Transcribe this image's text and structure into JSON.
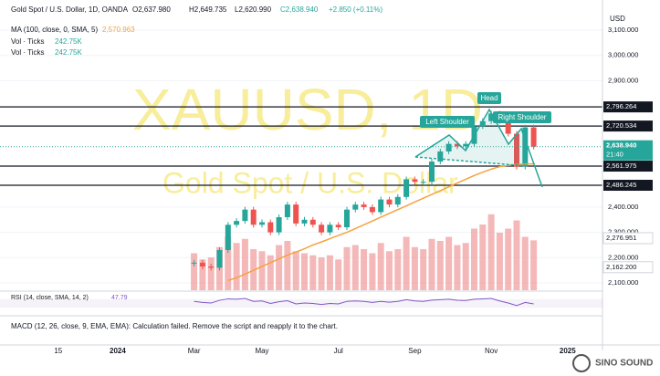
{
  "header": {
    "symbol": "Gold Spot / U.S. Dollar, 1D, OANDA",
    "ohlc": [
      "O2,637.980",
      "H2,649.735",
      "L2,620.990",
      "C2,638.940",
      "+2.850 (+0.11%)"
    ],
    "ma_label": "MA (100, close, 0, SMA, 5)",
    "ma_value": "2,570.963",
    "vol_label": "Vol · Ticks",
    "vol_value": "242.75K",
    "currency": "USD"
  },
  "watermark": {
    "symbol": "XAUUSD, 1D",
    "name": "Gold Spot / U.S. Dollar"
  },
  "pattern": {
    "head": "Head",
    "left": "Left Shoulder",
    "right": "Right Shoulder"
  },
  "rsi_label": "RSI (14, close, SMA, 14, 2)",
  "rsi_value": "47.79",
  "macd_label": "MACD (12, 26, close, 9, EMA, EMA): Calculation failed. Remove the script and reapply it to the chart.",
  "logo": "SINO SOUND",
  "chart_data": {
    "type": "candlestick",
    "categories": [
      null,
      null,
      null,
      null,
      null,
      null,
      "15",
      null,
      null,
      null,
      null,
      null,
      null,
      "2024",
      null,
      null,
      null,
      null,
      null,
      null,
      null,
      null,
      "Mar",
      null,
      null,
      null,
      null,
      null,
      null,
      null,
      "May",
      null,
      null,
      null,
      null,
      null,
      null,
      null,
      null,
      "Jul",
      null,
      null,
      null,
      null,
      null,
      null,
      null,
      null,
      "Sep",
      null,
      null,
      null,
      null,
      null,
      null,
      null,
      null,
      "Nov",
      null,
      null,
      null,
      null,
      null,
      null,
      null,
      null,
      "2025",
      null,
      null,
      null
    ],
    "ylim": [
      2100,
      3100
    ],
    "yticks": [
      {
        "value": 3100,
        "label": "3,100.000"
      },
      {
        "value": 3000,
        "label": "3,000.000"
      },
      {
        "value": 2900,
        "label": "2,900.000"
      },
      {
        "value": 2400,
        "label": "2,400.000"
      },
      {
        "value": 2300,
        "label": "2,300.000"
      },
      {
        "value": 2200,
        "label": "2,200.000"
      },
      {
        "value": 2100,
        "label": "2,100.000"
      }
    ],
    "grid": true,
    "series": [
      {
        "name": "XAUUSD",
        "color_up": "#26a69a",
        "color_down": "#ef5350",
        "values": [
          null,
          null,
          null,
          null,
          null,
          null,
          null,
          null,
          null,
          null,
          null,
          null,
          null,
          null,
          null,
          null,
          null,
          null,
          null,
          null,
          null,
          null,
          2180,
          2165,
          2160,
          2230,
          2330,
          2345,
          2390,
          2330,
          2340,
          2300,
          2360,
          2410,
          2335,
          2350,
          2330,
          2300,
          2330,
          2320,
          2390,
          2410,
          2400,
          2380,
          2430,
          2410,
          2440,
          2510,
          2500,
          2500,
          2580,
          2620,
          2650,
          2640,
          2650,
          2720,
          2740,
          2770,
          2740,
          2690,
          2560,
          2715,
          2638.94,
          null,
          null,
          null,
          null,
          null,
          null,
          null
        ]
      },
      {
        "name": "MA",
        "color": "#f5a340",
        "values": [
          null,
          null,
          null,
          null,
          null,
          null,
          null,
          null,
          null,
          null,
          null,
          null,
          null,
          null,
          null,
          null,
          null,
          null,
          null,
          null,
          null,
          null,
          null,
          null,
          null,
          null,
          2110,
          2120,
          2135,
          2150,
          2165,
          2180,
          2195,
          2210,
          2222,
          2235,
          2250,
          2262,
          2275,
          2288,
          2300,
          2315,
          2330,
          2345,
          2360,
          2375,
          2390,
          2405,
          2420,
          2435,
          2450,
          2465,
          2480,
          2495,
          2510,
          2525,
          2538,
          2550,
          2560,
          2565,
          2568,
          2570,
          2570.963,
          null,
          null,
          null,
          null,
          null,
          null,
          null
        ]
      }
    ],
    "levels": [
      {
        "value": 2796.264,
        "label": "2,796.264"
      },
      {
        "value": 2720.534,
        "label": "2,720.534"
      },
      {
        "value": 2561.975,
        "label": "2,561.975"
      },
      {
        "value": 2486.245,
        "label": "2,486.245"
      }
    ],
    "price_labels": [
      {
        "value": 2276.951,
        "label": "2,276.951"
      },
      {
        "value": 2162.2,
        "label": "2,162.200"
      }
    ],
    "last_price": {
      "value": 2638.94,
      "label": "2,638.940",
      "time": "21:40"
    },
    "volume": {
      "ylim": [
        0,
        400
      ],
      "values": [
        null,
        null,
        null,
        null,
        null,
        null,
        null,
        null,
        null,
        null,
        null,
        null,
        null,
        null,
        null,
        null,
        null,
        null,
        null,
        null,
        null,
        null,
        180,
        150,
        160,
        210,
        260,
        230,
        250,
        200,
        190,
        170,
        220,
        240,
        190,
        180,
        170,
        160,
        170,
        150,
        210,
        220,
        200,
        180,
        230,
        190,
        200,
        260,
        210,
        200,
        250,
        240,
        260,
        220,
        230,
        300,
        320,
        370,
        280,
        300,
        340,
        260,
        242.75,
        null,
        null,
        null,
        null,
        null,
        null,
        null
      ]
    },
    "rsi": {
      "ylim": [
        0,
        100
      ],
      "color": "#7e57c2",
      "values": [
        null,
        null,
        null,
        null,
        null,
        null,
        null,
        null,
        null,
        null,
        null,
        null,
        null,
        null,
        null,
        null,
        null,
        null,
        null,
        null,
        null,
        null,
        60,
        55,
        52,
        65,
        72,
        70,
        74,
        60,
        62,
        50,
        58,
        63,
        48,
        52,
        50,
        45,
        50,
        48,
        60,
        62,
        60,
        55,
        60,
        56,
        60,
        68,
        62,
        60,
        66,
        68,
        70,
        65,
        64,
        70,
        72,
        74,
        62,
        52,
        40,
        55,
        47.79,
        null,
        null,
        null,
        null,
        null,
        null,
        null
      ]
    }
  }
}
